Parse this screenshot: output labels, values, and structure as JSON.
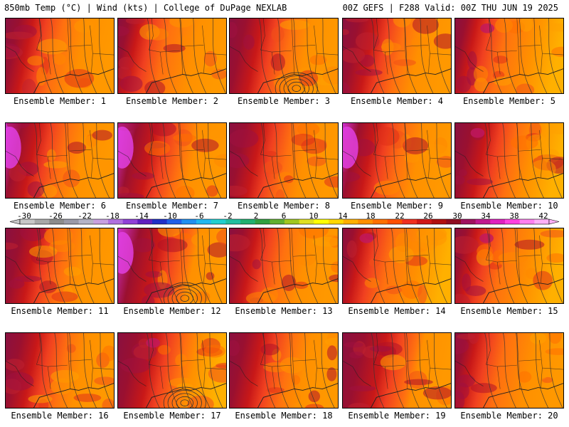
{
  "header": {
    "left": "850mb Temp (°C) | Wind (kts) | College of DuPage NEXLAB",
    "right": "00Z GEFS | F288 Valid: 00Z THU JUN 19 2025"
  },
  "colorbar": {
    "labels": [
      "-30",
      "-26",
      "-22",
      "-18",
      "-14",
      "-10",
      "-6",
      "-2",
      "2",
      "6",
      "10",
      "14",
      "18",
      "22",
      "26",
      "30",
      "34",
      "38",
      "42"
    ],
    "colors": [
      "#c8c8c8",
      "#a8a8a8",
      "#8c8c8c",
      "#9a9aa8",
      "#b4b4c8",
      "#c8a0e0",
      "#b070e0",
      "#9040d8",
      "#6020c0",
      "#2030c8",
      "#2060e8",
      "#2090f0",
      "#20b8f0",
      "#20d0d0",
      "#20c0a0",
      "#20b070",
      "#30a040",
      "#60b030",
      "#a0c820",
      "#e0e020",
      "#ffff00",
      "#ffd800",
      "#ffb000",
      "#ff9000",
      "#ff7000",
      "#ff5000",
      "#f03020",
      "#d01818",
      "#b01010",
      "#900c20",
      "#a01060",
      "#c01890",
      "#e020c0",
      "#ff40e0",
      "#ff80f0",
      "#ffb0f8"
    ]
  },
  "members": [
    {
      "label": "Ensemble Member: 1"
    },
    {
      "label": "Ensemble Member: 2"
    },
    {
      "label": "Ensemble Member: 3"
    },
    {
      "label": "Ensemble Member: 4"
    },
    {
      "label": "Ensemble Member: 5"
    },
    {
      "label": "Ensemble Member: 6"
    },
    {
      "label": "Ensemble Member: 7"
    },
    {
      "label": "Ensemble Member: 8"
    },
    {
      "label": "Ensemble Member: 9"
    },
    {
      "label": "Ensemble Member: 10"
    },
    {
      "label": "Ensemble Member: 11"
    },
    {
      "label": "Ensemble Member: 12"
    },
    {
      "label": "Ensemble Member: 13"
    },
    {
      "label": "Ensemble Member: 14"
    },
    {
      "label": "Ensemble Member: 15"
    },
    {
      "label": "Ensemble Member: 16"
    },
    {
      "label": "Ensemble Member: 17"
    },
    {
      "label": "Ensemble Member: 18"
    },
    {
      "label": "Ensemble Member: 19"
    },
    {
      "label": "Ensemble Member: 20"
    }
  ]
}
